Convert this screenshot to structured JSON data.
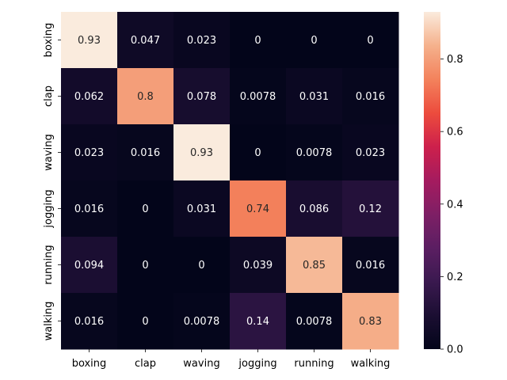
{
  "chart_data": {
    "type": "heatmap",
    "rows": [
      "boxing",
      "clap",
      "waving",
      "jogging",
      "running",
      "walking"
    ],
    "columns": [
      "boxing",
      "clap",
      "waving",
      "jogging",
      "running",
      "walking"
    ],
    "values": [
      [
        0.93,
        0.047,
        0.023,
        0,
        0,
        0
      ],
      [
        0.062,
        0.8,
        0.078,
        0.0078,
        0.031,
        0.016
      ],
      [
        0.023,
        0.016,
        0.93,
        0,
        0.0078,
        0.023
      ],
      [
        0.016,
        0,
        0.031,
        0.74,
        0.086,
        0.12
      ],
      [
        0.094,
        0,
        0,
        0.039,
        0.85,
        0.016
      ],
      [
        0.016,
        0,
        0.0078,
        0.14,
        0.0078,
        0.83
      ]
    ],
    "colorbar": {
      "min": 0,
      "max": 0.93,
      "ticks": [
        0.0,
        0.2,
        0.4,
        0.6,
        0.8
      ],
      "tick_labels": [
        "0.0",
        "0.2",
        "0.4",
        "0.6",
        "0.8"
      ]
    },
    "colormap": "rocket",
    "title": "",
    "xlabel": "",
    "ylabel": ""
  }
}
